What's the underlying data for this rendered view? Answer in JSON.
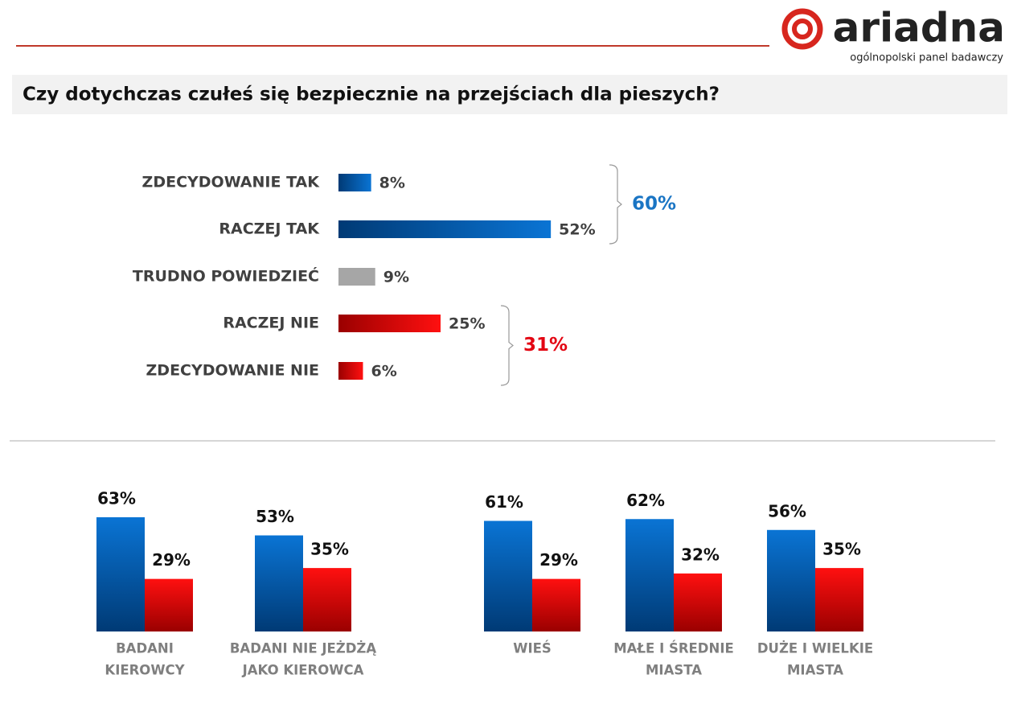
{
  "header": {
    "logo": "ariadna",
    "tagline": "ogólnopolski panel badawczy"
  },
  "chart_data": [
    {
      "type": "hbar",
      "title": "Czy dotychczas czułeś się bezpiecznie na przejściach dla pieszych?",
      "categories": [
        "ZDECYDOWANIE TAK",
        "RACZEJ TAK",
        "TRUDNO POWIEDZIEĆ",
        "RACZEJ NIE",
        "ZDECYDOWANIE NIE"
      ],
      "values": [
        8,
        52,
        9,
        25,
        6
      ],
      "value_labels": [
        "8%",
        "52%",
        "9%",
        "25%",
        "6%"
      ],
      "colors": [
        [
          "#003a75",
          "#0a74d4"
        ],
        [
          "#003a75",
          "#0a74d4"
        ],
        [
          "#a6a6a6",
          "#a6a6a6"
        ],
        [
          "#9a0000",
          "#ff1010"
        ],
        [
          "#9a0000",
          "#ff1010"
        ]
      ],
      "groups": [
        {
          "value": 60,
          "label": "60%",
          "color": "#1a75c4",
          "members": [
            "ZDECYDOWANIE TAK",
            "RACZEJ TAK"
          ]
        },
        {
          "value": 31,
          "label": "31%",
          "color": "#e30613",
          "members": [
            "RACZEJ NIE",
            "ZDECYDOWANIE NIE"
          ]
        }
      ]
    },
    {
      "type": "grouped-bar",
      "categories": [
        [
          "BADANI",
          "KIEROWCY"
        ],
        [
          "BADANI NIE JEŻDŻĄ",
          "JAKO KIEROWCA"
        ],
        [
          "WIEŚ"
        ],
        [
          "MAŁE I ŚREDNIE",
          "MIASTA"
        ],
        [
          "DUŻE I WIELKIE",
          "MIASTA"
        ]
      ],
      "series": [
        {
          "color": [
            "#0a74d4",
            "#003a75"
          ],
          "values": [
            63,
            53,
            61,
            62,
            56
          ],
          "value_labels": [
            "63%",
            "53%",
            "61%",
            "62%",
            "56%"
          ]
        },
        {
          "color": [
            "#ff1010",
            "#9a0000"
          ],
          "values": [
            29,
            35,
            29,
            32,
            35
          ],
          "value_labels": [
            "29%",
            "35%",
            "29%",
            "32%",
            "35%"
          ]
        }
      ]
    }
  ]
}
